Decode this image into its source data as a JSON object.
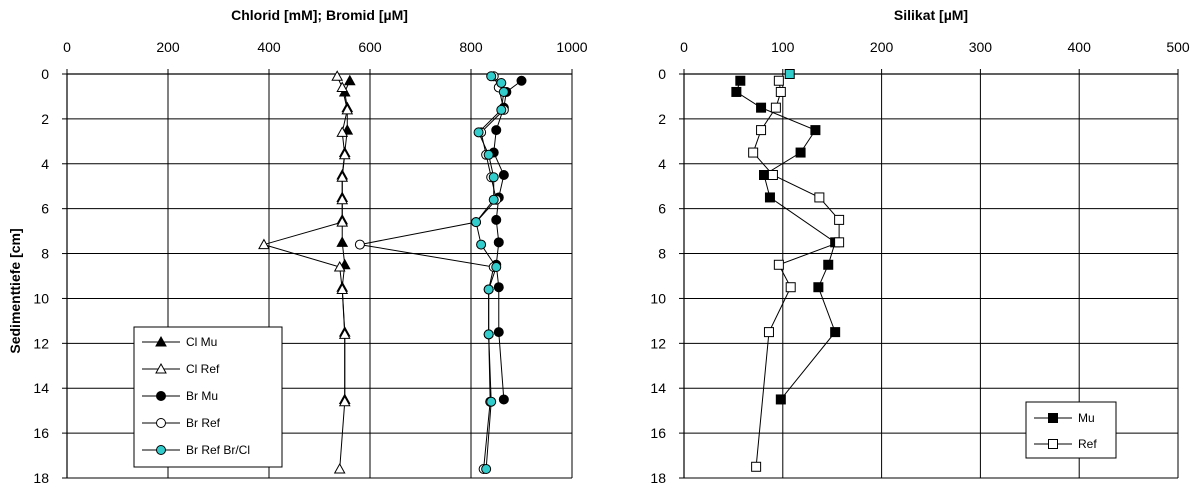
{
  "chart_data": [
    {
      "type": "line",
      "orientation": "vertical-profile",
      "title": "Chlorid [mM]; Bromid [µM]",
      "ylabel": "Sedimenttiefe [cm]",
      "xlim": [
        0,
        1000
      ],
      "ylim": [
        0,
        18
      ],
      "y_inverted": true,
      "x_ticks": [
        "0",
        "200",
        "400",
        "600",
        "800",
        "1000"
      ],
      "y_ticks": [
        "0",
        "2",
        "4",
        "6",
        "8",
        "10",
        "12",
        "14",
        "16",
        "18"
      ],
      "grid": true,
      "legend_position": "bottom-left",
      "series": [
        {
          "name": "Cl Mu",
          "marker": "triangle",
          "fill": "#000000",
          "x": [
            560,
            550,
            555,
            555,
            550,
            545,
            545,
            545,
            545,
            550,
            545,
            550,
            550
          ],
          "y": [
            0.3,
            0.8,
            1.5,
            2.5,
            3.5,
            4.5,
            5.5,
            6.5,
            7.5,
            8.5,
            9.5,
            11.5,
            14.5
          ]
        },
        {
          "name": "Cl Ref",
          "marker": "triangle",
          "fill": "#ffffff",
          "x": [
            535,
            545,
            555,
            545,
            550,
            545,
            545,
            545,
            390,
            540,
            545,
            550,
            550,
            540
          ],
          "y": [
            0.1,
            0.6,
            1.6,
            2.6,
            3.6,
            4.6,
            5.6,
            6.6,
            7.6,
            8.6,
            9.6,
            11.6,
            14.6,
            17.6
          ]
        },
        {
          "name": "Br Mu",
          "marker": "circle",
          "fill": "#000000",
          "x": [
            900,
            870,
            865,
            850,
            845,
            865,
            855,
            850,
            855,
            850,
            855,
            855,
            865
          ],
          "y": [
            0.3,
            0.8,
            1.5,
            2.5,
            3.5,
            4.5,
            5.5,
            6.5,
            7.5,
            8.5,
            9.5,
            11.5,
            14.5
          ]
        },
        {
          "name": "Br Ref",
          "marker": "circle",
          "fill": "#ffffff",
          "x": [
            845,
            855,
            865,
            820,
            830,
            840,
            850,
            810,
            580,
            845,
            835,
            835,
            838,
            825
          ],
          "y": [
            0.1,
            0.6,
            1.6,
            2.6,
            3.6,
            4.6,
            5.6,
            6.6,
            7.6,
            8.6,
            9.6,
            11.6,
            14.6,
            17.6
          ]
        },
        {
          "name": "Br Ref Br/Cl",
          "marker": "circle",
          "fill": "#33cccc",
          "x": [
            840,
            860,
            865,
            860,
            815,
            835,
            845,
            845,
            810,
            820,
            850,
            835,
            835,
            840,
            830
          ],
          "y": [
            0.1,
            0.4,
            0.8,
            1.6,
            2.6,
            3.6,
            4.6,
            5.6,
            6.6,
            7.6,
            8.6,
            9.6,
            11.6,
            14.6,
            17.6
          ]
        }
      ]
    },
    {
      "type": "line",
      "orientation": "vertical-profile",
      "title": "Silikat [µM]",
      "xlim": [
        0,
        500
      ],
      "ylim": [
        0,
        18
      ],
      "y_inverted": true,
      "x_ticks": [
        "0",
        "100",
        "200",
        "300",
        "400",
        "500"
      ],
      "y_ticks": [
        "0",
        "2",
        "4",
        "6",
        "8",
        "10",
        "12",
        "14",
        "16",
        "18"
      ],
      "grid": true,
      "legend_position": "bottom-right",
      "series": [
        {
          "name": "Mu",
          "marker": "square",
          "fill": "#000000",
          "x": [
            57,
            53,
            78,
            133,
            118,
            81,
            87,
            153,
            146,
            136,
            153,
            98
          ],
          "y": [
            0.3,
            0.8,
            1.5,
            2.5,
            3.5,
            4.5,
            5.5,
            7.5,
            8.5,
            9.5,
            11.5,
            14.5
          ]
        },
        {
          "name": "Ref",
          "marker": "square",
          "fill": "#ffffff",
          "x": [
            96,
            98,
            93,
            78,
            70,
            90,
            137,
            157,
            157,
            96,
            108,
            86,
            73
          ],
          "y": [
            0.3,
            0.8,
            1.5,
            2.5,
            3.5,
            4.5,
            5.5,
            6.5,
            7.5,
            8.5,
            9.5,
            11.5,
            17.5
          ]
        },
        {
          "name": "",
          "marker": "square",
          "fill": "#33cccc",
          "show_in_legend": false,
          "x": [
            107
          ],
          "y": [
            0.0
          ]
        }
      ]
    }
  ]
}
